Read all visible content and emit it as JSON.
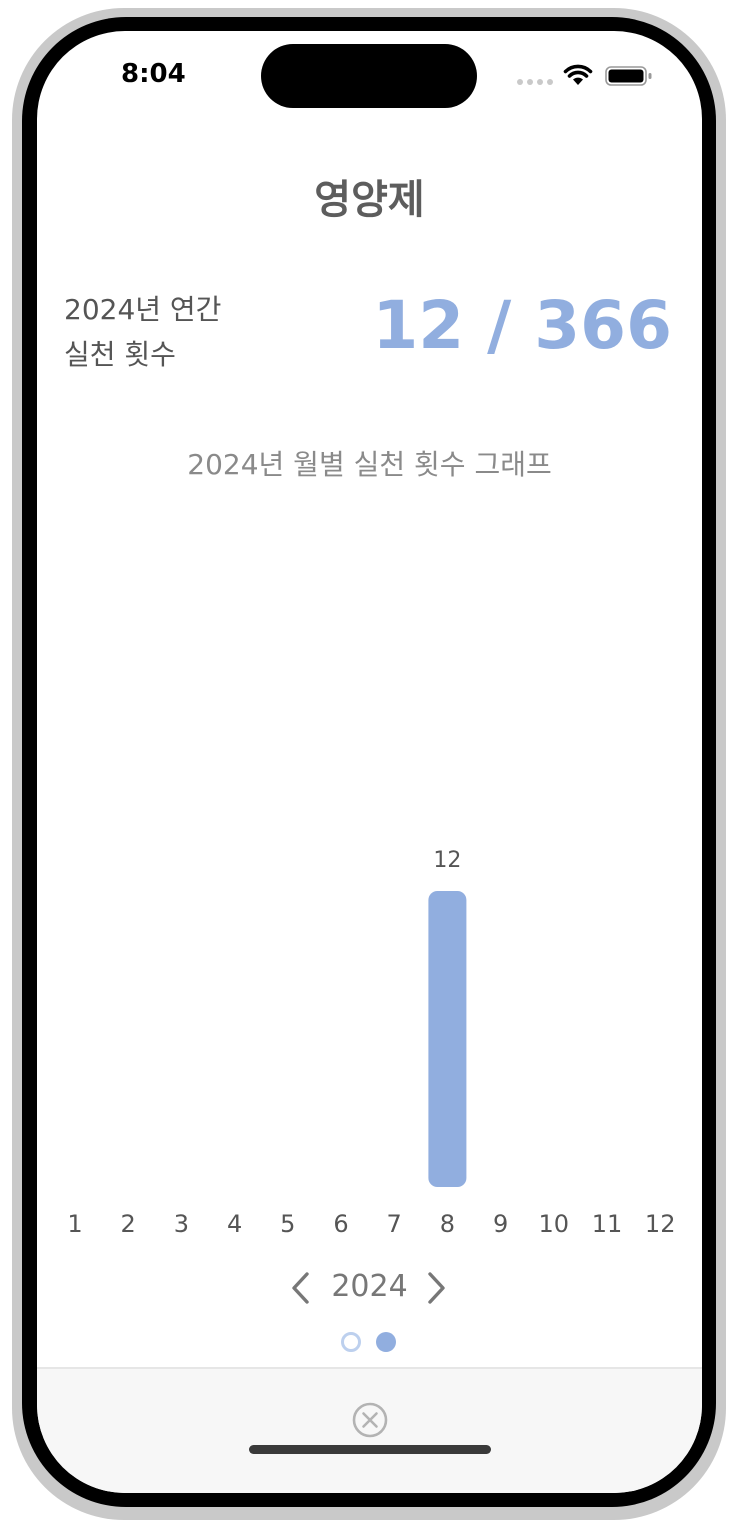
{
  "status_bar": {
    "time": "8:04"
  },
  "header": {
    "title": "영양제"
  },
  "annual": {
    "label_line1": "2024년 연간",
    "label_line2": "실천 횟수",
    "value": "12 / 366"
  },
  "graph": {
    "title": "2024년 월별 실천 횟수 그래프"
  },
  "chart_data": {
    "type": "bar",
    "categories": [
      "1",
      "2",
      "3",
      "4",
      "5",
      "6",
      "7",
      "8",
      "9",
      "10",
      "11",
      "12"
    ],
    "values": [
      0,
      0,
      0,
      0,
      0,
      0,
      0,
      12,
      0,
      0,
      0,
      0
    ],
    "title": "2024년 월별 실천 횟수 그래프",
    "xlabel": "",
    "ylabel": "",
    "ylim": [
      0,
      12
    ],
    "bar_color": "#91aedf"
  },
  "year_nav": {
    "year": "2024"
  },
  "pager": {
    "count": 2,
    "active": 2
  },
  "colors": {
    "accent": "#91aedf",
    "accent_light": "#bdd0ee"
  },
  "icons": {
    "prev": "chevron-left-icon",
    "next": "chevron-right-icon",
    "close": "close-circle-icon"
  }
}
